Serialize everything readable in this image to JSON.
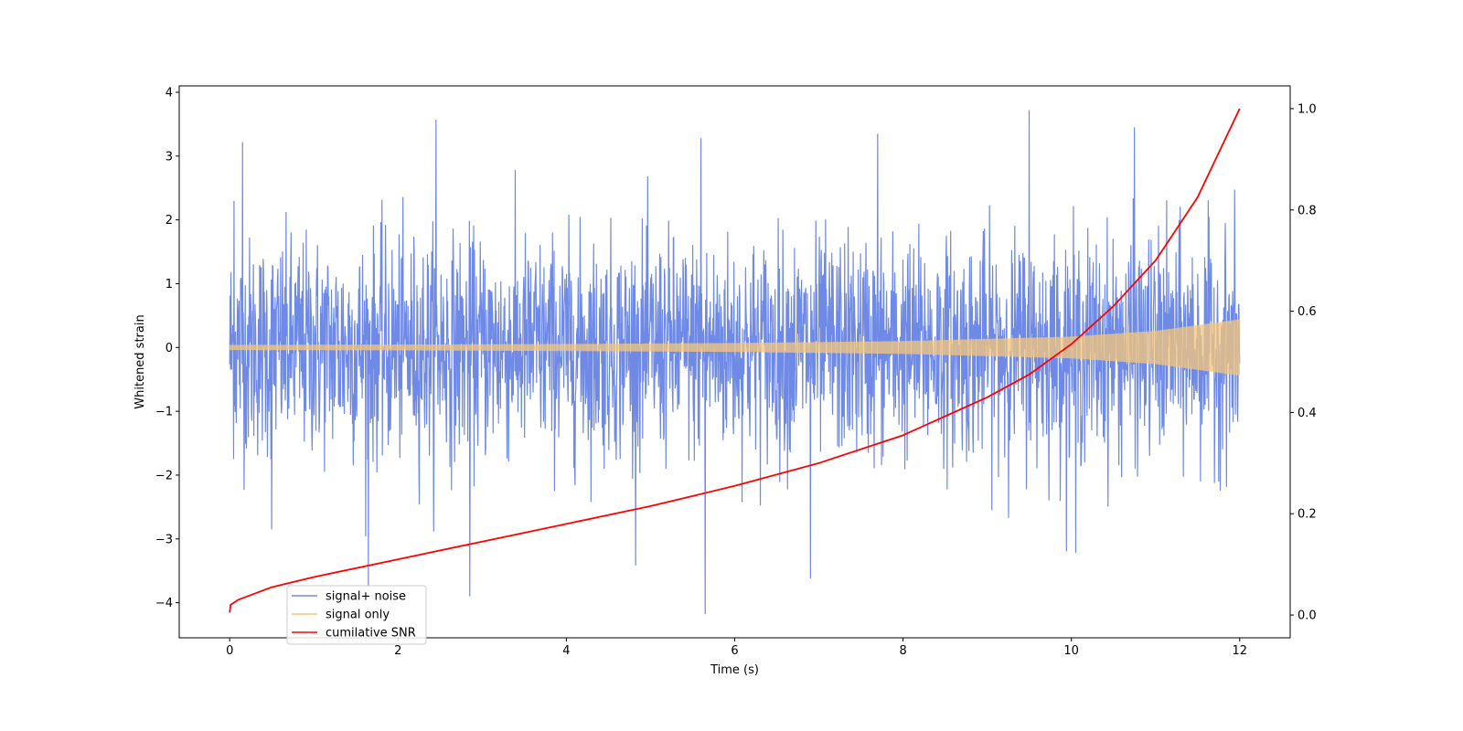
{
  "chart_data": {
    "type": "line",
    "xlabel": "Time (s)",
    "ylabel": "Whitened strain",
    "ylabel_right": "",
    "xlim": [
      -0.6,
      12.6
    ],
    "ylim": [
      -4.55,
      4.1
    ],
    "ylim_right": [
      -0.045,
      1.045
    ],
    "x_ticks": [
      0,
      2,
      4,
      6,
      8,
      10,
      12
    ],
    "y_ticks": [
      -4,
      -3,
      -2,
      -1,
      0,
      1,
      2,
      3,
      4
    ],
    "y_right_ticks": [
      0.0,
      0.2,
      0.4,
      0.6,
      0.8,
      1.0
    ],
    "x_tick_labels": [
      "0",
      "2",
      "4",
      "6",
      "8",
      "10",
      "12"
    ],
    "y_tick_labels": [
      "−4",
      "−3",
      "−2",
      "−1",
      "0",
      "1",
      "2",
      "3",
      "4"
    ],
    "y_right_tick_labels": [
      "0.0",
      "0.2",
      "0.4",
      "0.6",
      "0.8",
      "1.0"
    ],
    "grid": false,
    "legend_position": "lower-left",
    "series": [
      {
        "name": "signal+ noise",
        "color": "#6f8ae6",
        "axis": "left",
        "kind": "noise",
        "x_range": [
          0,
          12
        ],
        "std": 0.85,
        "peaks": [
          [
            0.15,
            3.22
          ],
          [
            0.05,
            2.3
          ],
          [
            2.45,
            3.57
          ],
          [
            9.5,
            3.72
          ],
          [
            10.75,
            3.45
          ],
          [
            7.7,
            3.35
          ],
          [
            5.6,
            3.28
          ],
          [
            1.65,
            -3.75
          ],
          [
            2.85,
            -3.9
          ],
          [
            5.65,
            -4.18
          ],
          [
            6.9,
            -3.62
          ],
          [
            10.05,
            -3.22
          ],
          [
            0.5,
            -2.85
          ]
        ]
      },
      {
        "name": "signal only",
        "color": "#f5c57a",
        "axis": "left",
        "kind": "chirp",
        "amplitude": [
          [
            0,
            0.04
          ],
          [
            2,
            0.045
          ],
          [
            4,
            0.055
          ],
          [
            6,
            0.07
          ],
          [
            8,
            0.1
          ],
          [
            10,
            0.17
          ],
          [
            11,
            0.26
          ],
          [
            12,
            0.44
          ]
        ]
      },
      {
        "name": "cumilative SNR",
        "color": "#ff0000",
        "axis": "right",
        "kind": "line",
        "x": [
          0,
          0.01,
          0.1,
          0.5,
          1,
          2,
          3,
          4,
          5,
          6,
          7,
          8,
          9,
          9.5,
          10,
          10.5,
          11,
          11.5,
          12
        ],
        "y": [
          0.005,
          0.02,
          0.03,
          0.055,
          0.075,
          0.11,
          0.145,
          0.18,
          0.215,
          0.255,
          0.3,
          0.355,
          0.43,
          0.475,
          0.535,
          0.61,
          0.7,
          0.825,
          1.0
        ]
      }
    ]
  }
}
